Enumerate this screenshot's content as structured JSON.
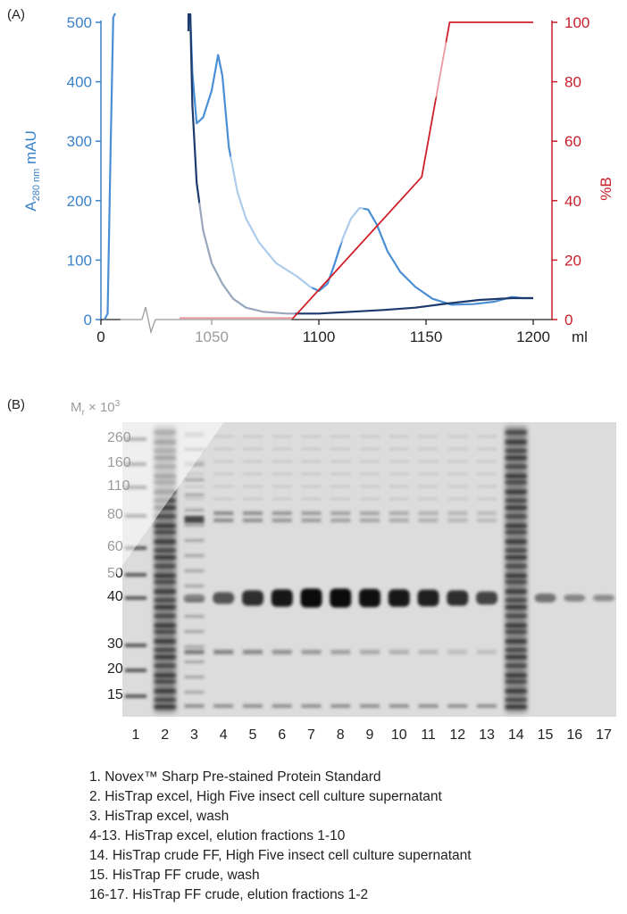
{
  "panel_a_label": "(A)",
  "panel_b_label": "(B)",
  "chart_data": [
    {
      "type": "line",
      "x_ticks": [
        "0",
        "1050",
        "1100",
        "1150",
        "1200"
      ],
      "x_unit": "ml",
      "y_left_ticks": [
        "0",
        "100",
        "200",
        "300",
        "400",
        "500"
      ],
      "y_left_label": {
        "main": "A",
        "sub": "280 nm",
        "unit": " mAU"
      },
      "y_left_range": [
        0,
        500
      ],
      "y_right_ticks": [
        "0",
        "20",
        "40",
        "60",
        "80",
        "100"
      ],
      "y_right_label": "%B",
      "y_right_range": [
        0,
        100
      ],
      "axis_break": true,
      "colors": {
        "absorbance_light": "#4a8fd6",
        "absorbance_dark": "#1c3a6b",
        "gradient": "#d0202a",
        "left_axis": "#3b82c9",
        "right_axis": "#c81e28"
      },
      "series": [
        {
          "name": "",
          "color_key": "absorbance_light",
          "points": [
            [
              1040,
              500
            ],
            [
              1041,
              415
            ],
            [
              1043,
              330
            ],
            [
              1046,
              340
            ],
            [
              1050,
              385
            ],
            [
              1053,
              445
            ],
            [
              1055,
              410
            ],
            [
              1058,
              290
            ],
            [
              1062,
              215
            ],
            [
              1066,
              170
            ],
            [
              1072,
              130
            ],
            [
              1080,
              95
            ],
            [
              1090,
              72
            ],
            [
              1096,
              55
            ],
            [
              1100,
              48
            ],
            [
              1104,
              60
            ],
            [
              1107,
              90
            ],
            [
              1111,
              135
            ],
            [
              1115,
              170
            ],
            [
              1119,
              188
            ],
            [
              1123,
              185
            ],
            [
              1127,
              160
            ],
            [
              1132,
              115
            ],
            [
              1138,
              80
            ],
            [
              1145,
              55
            ],
            [
              1153,
              35
            ],
            [
              1162,
              25
            ],
            [
              1172,
              26
            ],
            [
              1182,
              30
            ],
            [
              1190,
              38
            ],
            [
              1195,
              36
            ],
            [
              1200,
              36
            ]
          ]
        },
        {
          "name": "",
          "color_key": "absorbance_dark",
          "points": [
            [
              1040,
              500
            ],
            [
              1041,
              360
            ],
            [
              1043,
              230
            ],
            [
              1046,
              150
            ],
            [
              1050,
              95
            ],
            [
              1055,
              60
            ],
            [
              1060,
              35
            ],
            [
              1066,
              20
            ],
            [
              1074,
              13
            ],
            [
              1085,
              10
            ],
            [
              1100,
              10
            ],
            [
              1115,
              13
            ],
            [
              1130,
              16
            ],
            [
              1145,
              20
            ],
            [
              1160,
              27
            ],
            [
              1175,
              33
            ],
            [
              1190,
              36
            ],
            [
              1200,
              36
            ]
          ]
        },
        {
          "name": "",
          "color_key": "gradient",
          "axis": "right",
          "points": [
            [
              1035,
              0.5
            ],
            [
              1088,
              0.5
            ],
            [
              1148,
              48
            ],
            [
              1161,
              100
            ],
            [
              1200,
              100
            ]
          ]
        }
      ],
      "pre_break_series": {
        "absorbance_light": [
          [
            0,
            0
          ],
          [
            0.25,
            0.02
          ],
          [
            0.5,
            0.6
          ],
          [
            0.7,
            1.0
          ]
        ],
        "baseline": [
          [
            0,
            0
          ],
          [
            1,
            0
          ]
        ]
      }
    },
    {
      "type": "gel",
      "mr_label": {
        "prefix": "M",
        "sub": "r",
        "mid": " × 10",
        "sup": "3"
      },
      "mw_ticks": [
        "260",
        "160",
        "110",
        "80",
        "60",
        "50",
        "40",
        "30",
        "20",
        "15"
      ],
      "lanes": [
        "1",
        "2",
        "3",
        "4",
        "5",
        "6",
        "7",
        "8",
        "9",
        "10",
        "11",
        "12",
        "13",
        "14",
        "15",
        "16",
        "17"
      ],
      "elution_band_intensity": [
        0,
        0,
        0.15,
        0.45,
        0.7,
        0.85,
        0.95,
        0.95,
        0.9,
        0.85,
        0.8,
        0.7,
        0.55,
        0,
        0.25,
        0.12,
        0.08
      ]
    }
  ],
  "legend": [
    "1. Novex™ Sharp Pre-stained Protein Standard",
    "2. HisTrap excel, High Five insect cell culture supernatant",
    "3. HisTrap excel, wash",
    "4-13. HisTrap excel, elution fractions 1-10",
    "14. HisTrap crude FF, High Five insect cell culture supernatant",
    "15. HisTrap FF crude, wash",
    "16-17. HisTrap FF crude, elution fractions 1-2"
  ]
}
